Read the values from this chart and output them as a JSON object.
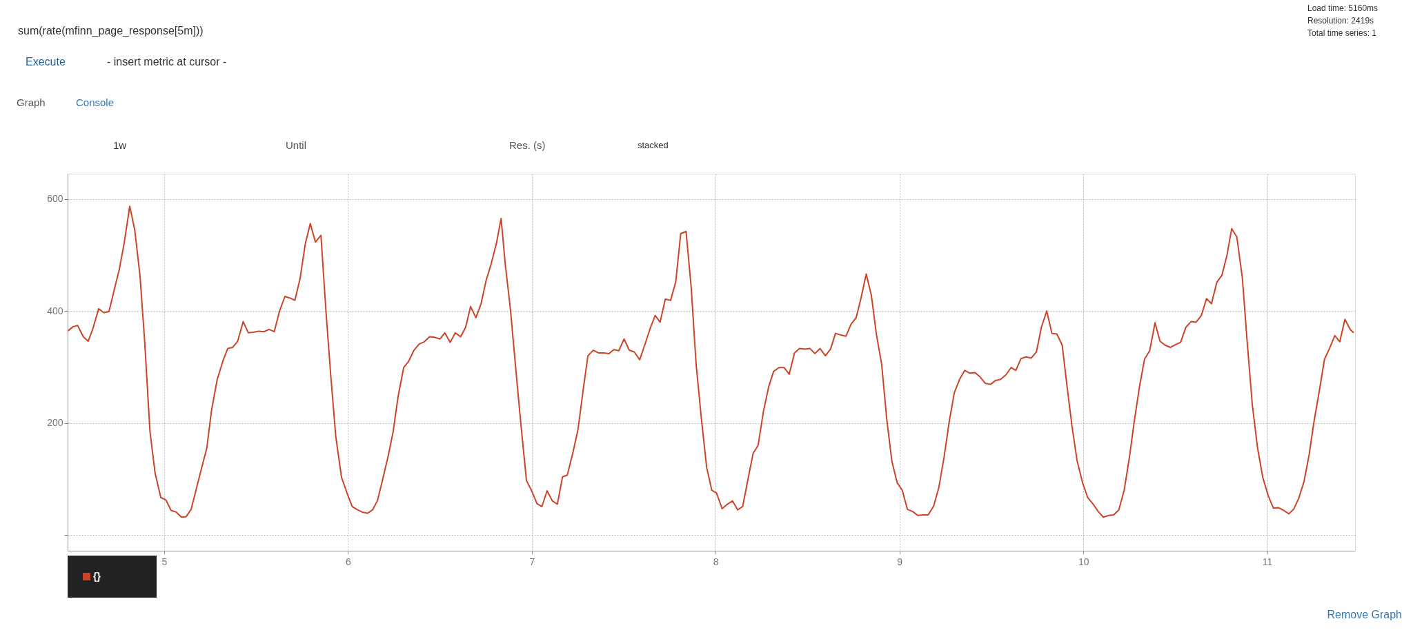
{
  "chart_data": {
    "type": "line",
    "title": "sum(rate(mfinn_page_response[5m]))",
    "xlim": [
      4.475,
      11.478
    ],
    "xticks": [
      5,
      6,
      7,
      8,
      9,
      10,
      11
    ],
    "ylim": [
      -28,
      645
    ],
    "yticks": [
      {
        "value": 0,
        "label": null
      },
      200,
      400,
      600
    ],
    "grid": true,
    "legend": "bottom left",
    "marker": "none",
    "line_style": "solid",
    "annotations": [
      "Load time: 5160ms",
      "Resolution: 2419s",
      "Total time series: 1",
      "Execute",
      "- insert metric at cursor -",
      "Graph",
      "Console",
      "1w",
      "Until",
      "Res. (s)",
      "stacked",
      "Remove Graph"
    ],
    "series": [
      {
        "name": "{}",
        "color": "#cc4428",
        "x": [
          4.475,
          4.505,
          4.53,
          4.56,
          4.587,
          4.613,
          4.644,
          4.671,
          4.7,
          4.728,
          4.756,
          4.782,
          4.813,
          4.84,
          4.869,
          4.894,
          4.923,
          4.951,
          4.982,
          5.009,
          5.038,
          5.066,
          5.094,
          5.12,
          5.147,
          5.177,
          5.204,
          5.232,
          5.258,
          5.289,
          5.32,
          5.346,
          5.373,
          5.4,
          5.43,
          5.458,
          5.485,
          5.515,
          5.542,
          5.571,
          5.599,
          5.627,
          5.657,
          5.685,
          5.711,
          5.739,
          5.768,
          5.795,
          5.823,
          5.853,
          5.88,
          5.906,
          5.934,
          5.965,
          5.995,
          6.023,
          6.052,
          6.078,
          6.106,
          6.134,
          6.161,
          6.187,
          6.218,
          6.246,
          6.272,
          6.303,
          6.33,
          6.359,
          6.387,
          6.415,
          6.444,
          6.472,
          6.5,
          6.527,
          6.556,
          6.584,
          6.613,
          6.64,
          6.667,
          6.696,
          6.724,
          6.751,
          6.779,
          6.807,
          6.833,
          6.856,
          6.884,
          6.913,
          6.94,
          6.971,
          6.998,
          7.028,
          7.055,
          7.083,
          7.112,
          7.139,
          7.167,
          7.193,
          7.224,
          7.251,
          7.277,
          7.305,
          7.335,
          7.364,
          7.392,
          7.42,
          7.446,
          7.473,
          7.502,
          7.53,
          7.557,
          7.587,
          7.614,
          7.645,
          7.671,
          7.698,
          7.726,
          7.755,
          7.783,
          7.81,
          7.839,
          7.867,
          7.894,
          7.923,
          7.951,
          7.979,
          8.005,
          8.035,
          8.063,
          8.092,
          8.12,
          8.147,
          8.176,
          8.204,
          8.231,
          8.26,
          8.288,
          8.315,
          8.345,
          8.372,
          8.4,
          8.429,
          8.456,
          8.484,
          8.513,
          8.54,
          8.568,
          8.597,
          8.625,
          8.652,
          8.681,
          8.709,
          8.736,
          8.764,
          8.79,
          8.819,
          8.847,
          8.874,
          8.903,
          8.931,
          8.959,
          8.988,
          9.015,
          9.043,
          9.072,
          9.1,
          9.127,
          9.156,
          9.186,
          9.214,
          9.243,
          9.271,
          9.298,
          9.327,
          9.355,
          9.382,
          9.411,
          9.439,
          9.466,
          9.495,
          9.523,
          9.55,
          9.579,
          9.607,
          9.633,
          9.661,
          9.688,
          9.717,
          9.745,
          9.772,
          9.801,
          9.829,
          9.856,
          9.885,
          9.913,
          9.939,
          9.966,
          9.997,
          10.024,
          10.054,
          10.081,
          10.109,
          10.138,
          10.165,
          10.193,
          10.222,
          10.249,
          10.277,
          10.306,
          10.333,
          10.361,
          10.39,
          10.417,
          10.445,
          10.474,
          10.502,
          10.529,
          10.558,
          10.586,
          10.613,
          10.642,
          10.67,
          10.697,
          10.726,
          10.754,
          10.781,
          10.807,
          10.835,
          10.865,
          10.891,
          10.919,
          10.948,
          10.976,
          11.006,
          11.034,
          11.061,
          11.09,
          11.118,
          11.144,
          11.171,
          11.2,
          11.228,
          11.255,
          11.284,
          11.312,
          11.339,
          11.368,
          11.395,
          11.423,
          11.452,
          11.471
        ],
        "values": [
          364,
          372,
          374,
          354,
          346,
          369,
          404,
          397,
          399,
          437,
          474,
          520,
          587,
          545,
          462,
          346,
          185,
          110,
          67,
          63,
          44,
          41,
          32,
          33,
          46,
          85,
          120,
          155,
          223,
          278,
          311,
          333,
          335,
          346,
          381,
          361,
          362,
          364,
          363,
          367,
          363,
          399,
          426,
          423,
          419,
          457,
          520,
          556,
          523,
          535,
          401,
          286,
          175,
          103,
          75,
          51,
          45,
          41,
          39,
          45,
          62,
          97,
          140,
          185,
          246,
          299,
          310,
          330,
          341,
          345,
          354,
          353,
          350,
          361,
          344,
          361,
          354,
          371,
          408,
          388,
          413,
          454,
          484,
          520,
          565,
          482,
          402,
          296,
          200,
          97,
          80,
          56,
          51,
          79,
          61,
          55,
          104,
          107,
          148,
          188,
          253,
          320,
          330,
          325,
          325,
          324,
          331,
          329,
          350,
          330,
          327,
          313,
          339,
          370,
          392,
          380,
          421,
          419,
          452,
          538,
          542,
          442,
          304,
          206,
          121,
          80,
          75,
          47,
          55,
          61,
          45,
          51,
          100,
          146,
          160,
          221,
          264,
          292,
          299,
          299,
          287,
          325,
          333,
          332,
          333,
          324,
          333,
          320,
          332,
          360,
          357,
          355,
          376,
          388,
          422,
          466,
          428,
          359,
          305,
          206,
          131,
          93,
          80,
          46,
          42,
          35,
          36,
          36,
          52,
          85,
          140,
          203,
          254,
          278,
          294,
          289,
          290,
          282,
          271,
          269,
          276,
          278,
          286,
          299,
          294,
          315,
          318,
          316,
          327,
          371,
          400,
          360,
          359,
          339,
          261,
          193,
          133,
          92,
          67,
          55,
          42,
          32,
          35,
          36,
          45,
          80,
          135,
          203,
          266,
          314,
          329,
          379,
          346,
          339,
          335,
          340,
          344,
          371,
          381,
          380,
          392,
          422,
          413,
          451,
          464,
          499,
          547,
          532,
          459,
          346,
          233,
          155,
          103,
          70,
          48,
          49,
          44,
          38,
          46,
          65,
          95,
          143,
          203,
          258,
          314,
          333,
          356,
          345,
          385,
          367,
          361
        ]
      }
    ]
  }
}
